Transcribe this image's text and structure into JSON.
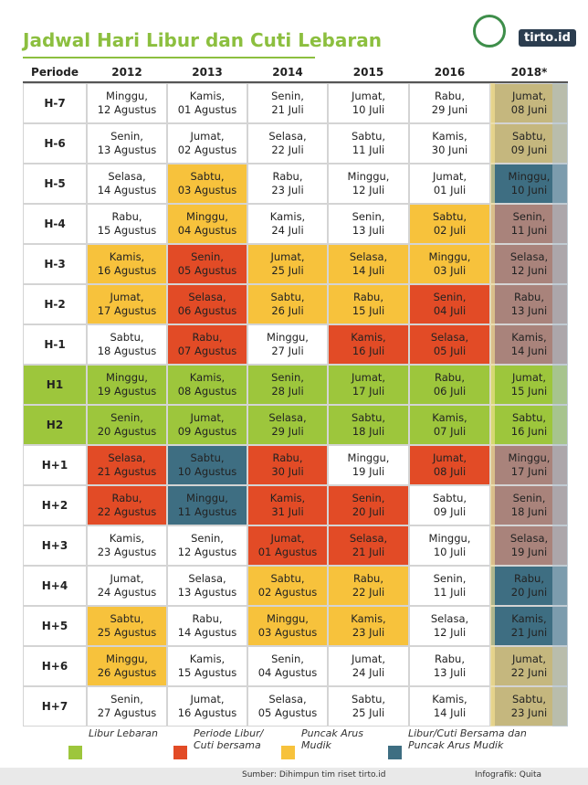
{
  "header": {
    "title": "Jadwal Hari Libur dan Cuti Lebaran",
    "brand": "tirto.id"
  },
  "table": {
    "headers": [
      "Periode",
      "2012",
      "2013",
      "2014",
      "2015",
      "2016",
      "2018*"
    ],
    "rows": [
      {
        "cells": [
          "H-7",
          "Minggu,\n12 Agustus",
          "Kamis,\n01 Agustus",
          "Senin,\n21 Juli",
          "Jumat,\n10 Juli",
          "Rabu,\n29 Juni",
          "Jumat,\n08 Juni"
        ],
        "colors": [
          null,
          null,
          null,
          null,
          null,
          null,
          "#c5b77e"
        ]
      },
      {
        "cells": [
          "H-6",
          "Senin,\n13 Agustus",
          "Jumat,\n02 Agustus",
          "Selasa,\n22 Juli",
          "Sabtu,\n11 Juli",
          "Kamis,\n30 Juni",
          "Sabtu,\n09 Juni"
        ],
        "colors": [
          null,
          null,
          null,
          null,
          null,
          null,
          "#c5b77e"
        ]
      },
      {
        "cells": [
          "H-5",
          "Selasa,\n14 Agustus",
          "Sabtu,\n03 Agustus",
          "Rabu,\n23 Juli",
          "Minggu,\n12 Juli",
          "Jumat,\n01 Juli",
          "Minggu,\n10 Juni"
        ],
        "colors": [
          null,
          null,
          "#f7c23c",
          null,
          null,
          null,
          "#3e6e82"
        ]
      },
      {
        "cells": [
          "H-4",
          "Rabu,\n15 Agustus",
          "Minggu,\n04 Agustus",
          "Kamis,\n24 Juli",
          "Senin,\n13 Juli",
          "Sabtu,\n02 Juli",
          "Senin,\n11 Juni"
        ],
        "colors": [
          null,
          null,
          "#f7c23c",
          null,
          null,
          "#f7c23c",
          "#a9837b"
        ]
      },
      {
        "cells": [
          "H-3",
          "Kamis,\n16 Agustus",
          "Senin,\n05 Agustus",
          "Jumat,\n25 Juli",
          "Selasa,\n14 Juli",
          "Minggu,\n03 Juli",
          "Selasa,\n12 Juni"
        ],
        "colors": [
          null,
          "#f7c23c",
          "#e24b26",
          "#f7c23c",
          "#f7c23c",
          "#f7c23c",
          "#a9837b"
        ]
      },
      {
        "cells": [
          "H-2",
          "Jumat,\n17 Agustus",
          "Selasa,\n06 Agustus",
          "Sabtu,\n26 Juli",
          "Rabu,\n15 Juli",
          "Senin,\n04 Juli",
          "Rabu,\n13 Juni"
        ],
        "colors": [
          null,
          "#f7c23c",
          "#e24b26",
          "#f7c23c",
          "#f7c23c",
          "#e24b26",
          "#a9837b"
        ]
      },
      {
        "cells": [
          "H-1",
          "Sabtu,\n18 Agustus",
          "Rabu,\n07 Agustus",
          "Minggu,\n27 Juli",
          "Kamis,\n16 Juli",
          "Selasa,\n05 Juli",
          "Kamis,\n14 Juni"
        ],
        "colors": [
          null,
          null,
          "#e24b26",
          null,
          "#e24b26",
          "#e24b26",
          "#a9837b"
        ]
      },
      {
        "cells": [
          "H1",
          "Minggu,\n19 Agustus",
          "Kamis,\n08 Agustus",
          "Senin,\n28 Juli",
          "Jumat,\n17 Juli",
          "Rabu,\n06 Juli",
          "Jumat,\n15 Juni"
        ],
        "colors": [
          "#9dc63c",
          "#9dc63c",
          "#9dc63c",
          "#9dc63c",
          "#9dc63c",
          "#9dc63c",
          "#9dc63c"
        ]
      },
      {
        "cells": [
          "H2",
          "Senin,\n20 Agustus",
          "Jumat,\n09 Agustus",
          "Selasa,\n29 Juli",
          "Sabtu,\n18 Juli",
          "Kamis,\n07 Juli",
          "Sabtu,\n16 Juni"
        ],
        "colors": [
          "#9dc63c",
          "#9dc63c",
          "#9dc63c",
          "#9dc63c",
          "#9dc63c",
          "#9dc63c",
          "#9dc63c"
        ]
      },
      {
        "cells": [
          "H+1",
          "Selasa,\n21 Agustus",
          "Sabtu,\n10 Agustus",
          "Rabu,\n30 Juli",
          "Minggu,\n19 Juli",
          "Jumat,\n08 Juli",
          "Minggu,\n17 Juni"
        ],
        "colors": [
          null,
          "#e24b26",
          "#3e6e82",
          "#e24b26",
          null,
          "#e24b26",
          "#a9837b"
        ]
      },
      {
        "cells": [
          "H+2",
          "Rabu,\n22 Agustus",
          "Minggu,\n11 Agustus",
          "Kamis,\n31 Juli",
          "Senin,\n20 Juli",
          "Sabtu,\n09 Juli",
          "Senin,\n18 Juni"
        ],
        "colors": [
          null,
          "#e24b26",
          "#3e6e82",
          "#e24b26",
          "#e24b26",
          null,
          "#a9837b"
        ]
      },
      {
        "cells": [
          "H+3",
          "Kamis,\n23 Agustus",
          "Senin,\n12 Agustus",
          "Jumat,\n01 Agustus",
          "Selasa,\n21 Juli",
          "Minggu,\n10 Juli",
          "Selasa,\n19 Juni"
        ],
        "colors": [
          null,
          null,
          null,
          "#e24b26",
          "#e24b26",
          null,
          "#a9837b"
        ]
      },
      {
        "cells": [
          "H+4",
          "Jumat,\n24 Agustus",
          "Selasa,\n13 Agustus",
          "Sabtu,\n02 Agustus",
          "Rabu,\n22 Juli",
          "Senin,\n11 Juli",
          "Rabu,\n20 Juni"
        ],
        "colors": [
          null,
          null,
          null,
          "#f7c23c",
          "#f7c23c",
          null,
          "#3e6e82"
        ]
      },
      {
        "cells": [
          "H+5",
          "Sabtu,\n25 Agustus",
          "Rabu,\n14 Agustus",
          "Minggu,\n03 Agustus",
          "Kamis,\n23 Juli",
          "Selasa,\n12 Juli",
          "Kamis,\n21 Juni"
        ],
        "colors": [
          null,
          "#f7c23c",
          null,
          "#f7c23c",
          "#f7c23c",
          null,
          "#3e6e82"
        ]
      },
      {
        "cells": [
          "H+6",
          "Minggu,\n26 Agustus",
          "Kamis,\n15 Agustus",
          "Senin,\n04 Agustus",
          "Jumat,\n24 Juli",
          "Rabu,\n13 Juli",
          "Jumat,\n22 Juni"
        ],
        "colors": [
          null,
          "#f7c23c",
          null,
          null,
          null,
          null,
          "#c5b77e"
        ]
      },
      {
        "cells": [
          "H+7",
          "Senin,\n27 Agustus",
          "Jumat,\n16 Agustus",
          "Selasa,\n05 Agustus",
          "Sabtu,\n25 Juli",
          "Kamis,\n14 Juli",
          "Sabtu,\n23 Juni"
        ],
        "colors": [
          null,
          null,
          null,
          null,
          null,
          null,
          "#c5b77e"
        ]
      }
    ]
  },
  "legend": [
    {
      "label": "Libur Lebaran",
      "color": "#9dc63c"
    },
    {
      "label": "Periode Libur/\nCuti bersama",
      "color": "#e24b26"
    },
    {
      "label": "Puncak Arus\nMudik",
      "color": "#f7c23c"
    },
    {
      "label": "Libur/Cuti Bersama dan\nPuncak Arus Mudik",
      "color": "#3e6e82"
    }
  ],
  "footer": {
    "source": "Sumber: Dihimpun tim riset tirto.id",
    "credit": "Infografik: Quita"
  }
}
